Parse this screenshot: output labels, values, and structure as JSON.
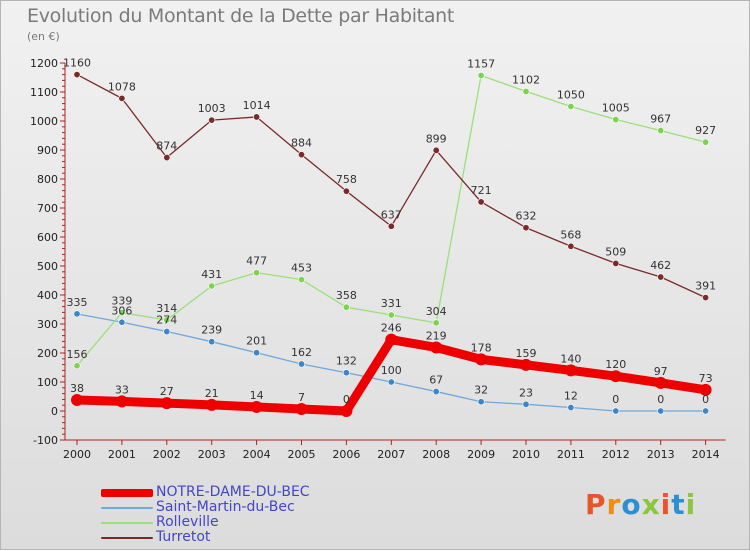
{
  "header": {
    "title": "Evolution du Montant de la Dette par Habitant",
    "subtitle": "(en €)"
  },
  "logo": {
    "text": "Proxiti",
    "colors": [
      "#e8552b",
      "#f08c1a",
      "#2a8fd3",
      "#8cc63f",
      "#e8552b",
      "#2a8fd3",
      "#8cc63f"
    ]
  },
  "chart_data": {
    "type": "line",
    "title": "Evolution du Montant de la Dette par Habitant",
    "subtitle": "(en €)",
    "x": [
      "2000",
      "2001",
      "2002",
      "2003",
      "2004",
      "2005",
      "2006",
      "2007",
      "2008",
      "2009",
      "2010",
      "2011",
      "2012",
      "2013",
      "2014"
    ],
    "ylim": [
      -100,
      1200
    ],
    "yticks": [
      -100,
      0,
      100,
      200,
      300,
      400,
      500,
      600,
      700,
      800,
      900,
      1000,
      1100,
      1200
    ],
    "grid": false,
    "legend_position": "bottom-left",
    "series": [
      {
        "name": "NOTRE-DAME-DU-BEC",
        "color": "#ee0000",
        "point_color": "#ee0000",
        "emphasis": true,
        "values": [
          38,
          33,
          27,
          21,
          14,
          7,
          0,
          246,
          219,
          178,
          159,
          140,
          120,
          97,
          73
        ]
      },
      {
        "name": "Saint-Martin-du-Bec",
        "color": "#6fa8dc",
        "point_color": "#3d85c6",
        "emphasis": false,
        "values": [
          335,
          306,
          274,
          239,
          201,
          162,
          132,
          100,
          67,
          32,
          23,
          12,
          0,
          0,
          0
        ]
      },
      {
        "name": "Rolleville",
        "color": "#9ae07a",
        "point_color": "#7bd34f",
        "emphasis": false,
        "values": [
          156,
          339,
          314,
          431,
          477,
          453,
          358,
          331,
          304,
          1157,
          1102,
          1050,
          1005,
          967,
          927
        ]
      },
      {
        "name": "Turretot",
        "color": "#7a2a2a",
        "point_color": "#7a2a2a",
        "emphasis": false,
        "values": [
          1160,
          1078,
          874,
          1003,
          1014,
          884,
          758,
          637,
          899,
          721,
          632,
          568,
          509,
          462,
          391
        ]
      }
    ]
  }
}
